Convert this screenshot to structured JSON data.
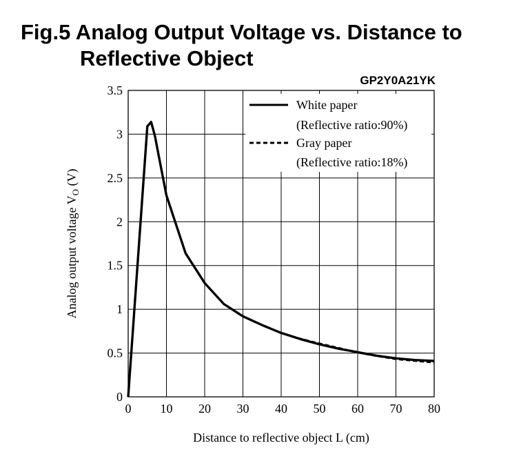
{
  "figure": {
    "title_line1": "Fig.5 Analog Output Voltage vs. Distance to",
    "title_line2": "Reflective Object",
    "model": "GP2Y0A21YK"
  },
  "chart_data": {
    "type": "line",
    "xlabel": "Distance to reflective object L (cm)",
    "ylabel_main": "Analog output voltage V",
    "ylabel_sub": "O",
    "ylabel_unit": " (V)",
    "xlim": [
      0,
      80
    ],
    "ylim": [
      0,
      3.5
    ],
    "x_ticks": [
      0,
      10,
      20,
      30,
      40,
      50,
      60,
      70,
      80
    ],
    "y_ticks": [
      0,
      0.5,
      1,
      1.5,
      2,
      2.5,
      3,
      3.5
    ],
    "y_tick_labels": [
      "0",
      "0.5",
      "1",
      "1.5",
      "2",
      "2.5",
      "3",
      "3.5"
    ],
    "grid": true,
    "legend_position": "top-right",
    "series": [
      {
        "name": "White paper",
        "name_line2": "(Reflective ratio:90%)",
        "style": "solid",
        "x": [
          0,
          5,
          6,
          7,
          8,
          10,
          15,
          20,
          25,
          30,
          35,
          40,
          45,
          50,
          55,
          60,
          65,
          70,
          75,
          80
        ],
        "y": [
          0,
          3.09,
          3.14,
          2.98,
          2.75,
          2.3,
          1.64,
          1.3,
          1.06,
          0.92,
          0.82,
          0.73,
          0.66,
          0.6,
          0.55,
          0.51,
          0.47,
          0.44,
          0.42,
          0.41
        ]
      },
      {
        "name": "Gray paper",
        "name_line2": "(Reflective ratio:18%)",
        "style": "dashed",
        "x": [
          0,
          5,
          6,
          7,
          8,
          10,
          15,
          20,
          25,
          30,
          35,
          40,
          45,
          50,
          55,
          60,
          65,
          70,
          75,
          80
        ],
        "y": [
          0,
          3.09,
          3.14,
          2.98,
          2.75,
          2.3,
          1.64,
          1.3,
          1.06,
          0.92,
          0.82,
          0.73,
          0.665,
          0.61,
          0.56,
          0.505,
          0.465,
          0.43,
          0.41,
          0.39
        ]
      }
    ]
  }
}
